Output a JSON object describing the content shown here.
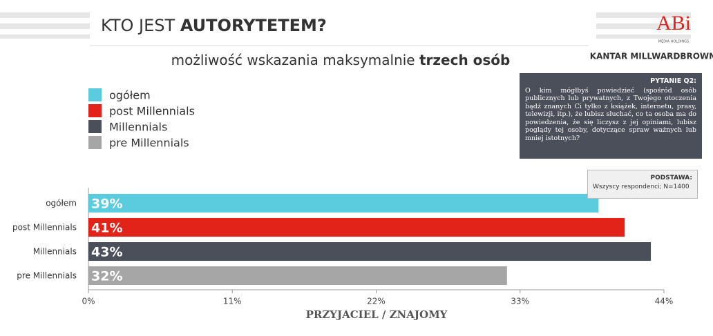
{
  "chart_data": {
    "type": "bar",
    "title": "KTO JEST",
    "title_bold": "AUTORYTETEM?",
    "subtitle": "możliwość wskazania maksymalnie",
    "subtitle_bold": "trzech osób",
    "logo": "ABi",
    "logo_sub": "MEDIA HOLDINGS",
    "logo2": "KANTAR MILLWARDBROWN",
    "question_title": "PYTANIE Q2:",
    "question": "O kim mógłbyś powiedzieć (spośród osób publicznych lub prywatnych, z Twojego otoczenia bądź znanych Ci tylko z książek, internetu, prasy, telewizji, itp.), że lubisz słuchać, co ta osoba ma do powiedzenia, że się liczysz z jej opiniami, lubisz poglądy tej osoby, dotyczące spraw ważnych lub mniej istotnych?",
    "base_title": "PODSTAWA:",
    "base": "Wszyscy respondenci; N=1400",
    "x_label": "PRZYJACIEL / ZNAJOMY",
    "categories": [
      "ogółem",
      "post Millennials",
      "Millennials",
      "pre Millennials"
    ],
    "values": [
      39,
      41,
      43,
      32
    ],
    "value_labels": [
      "39%",
      "41%",
      "43%",
      "32%"
    ],
    "colors": [
      "#5bcbde",
      "#e2231a",
      "#4b4f5a",
      "#a6a6a6"
    ],
    "xlim": [
      0,
      44
    ],
    "xticks": [
      {
        "value": 0,
        "label": "0%"
      },
      {
        "value": 11,
        "label": "11%"
      },
      {
        "value": 22,
        "label": "22%"
      },
      {
        "value": 33,
        "label": "33%"
      },
      {
        "value": 44,
        "label": "44%"
      }
    ]
  }
}
